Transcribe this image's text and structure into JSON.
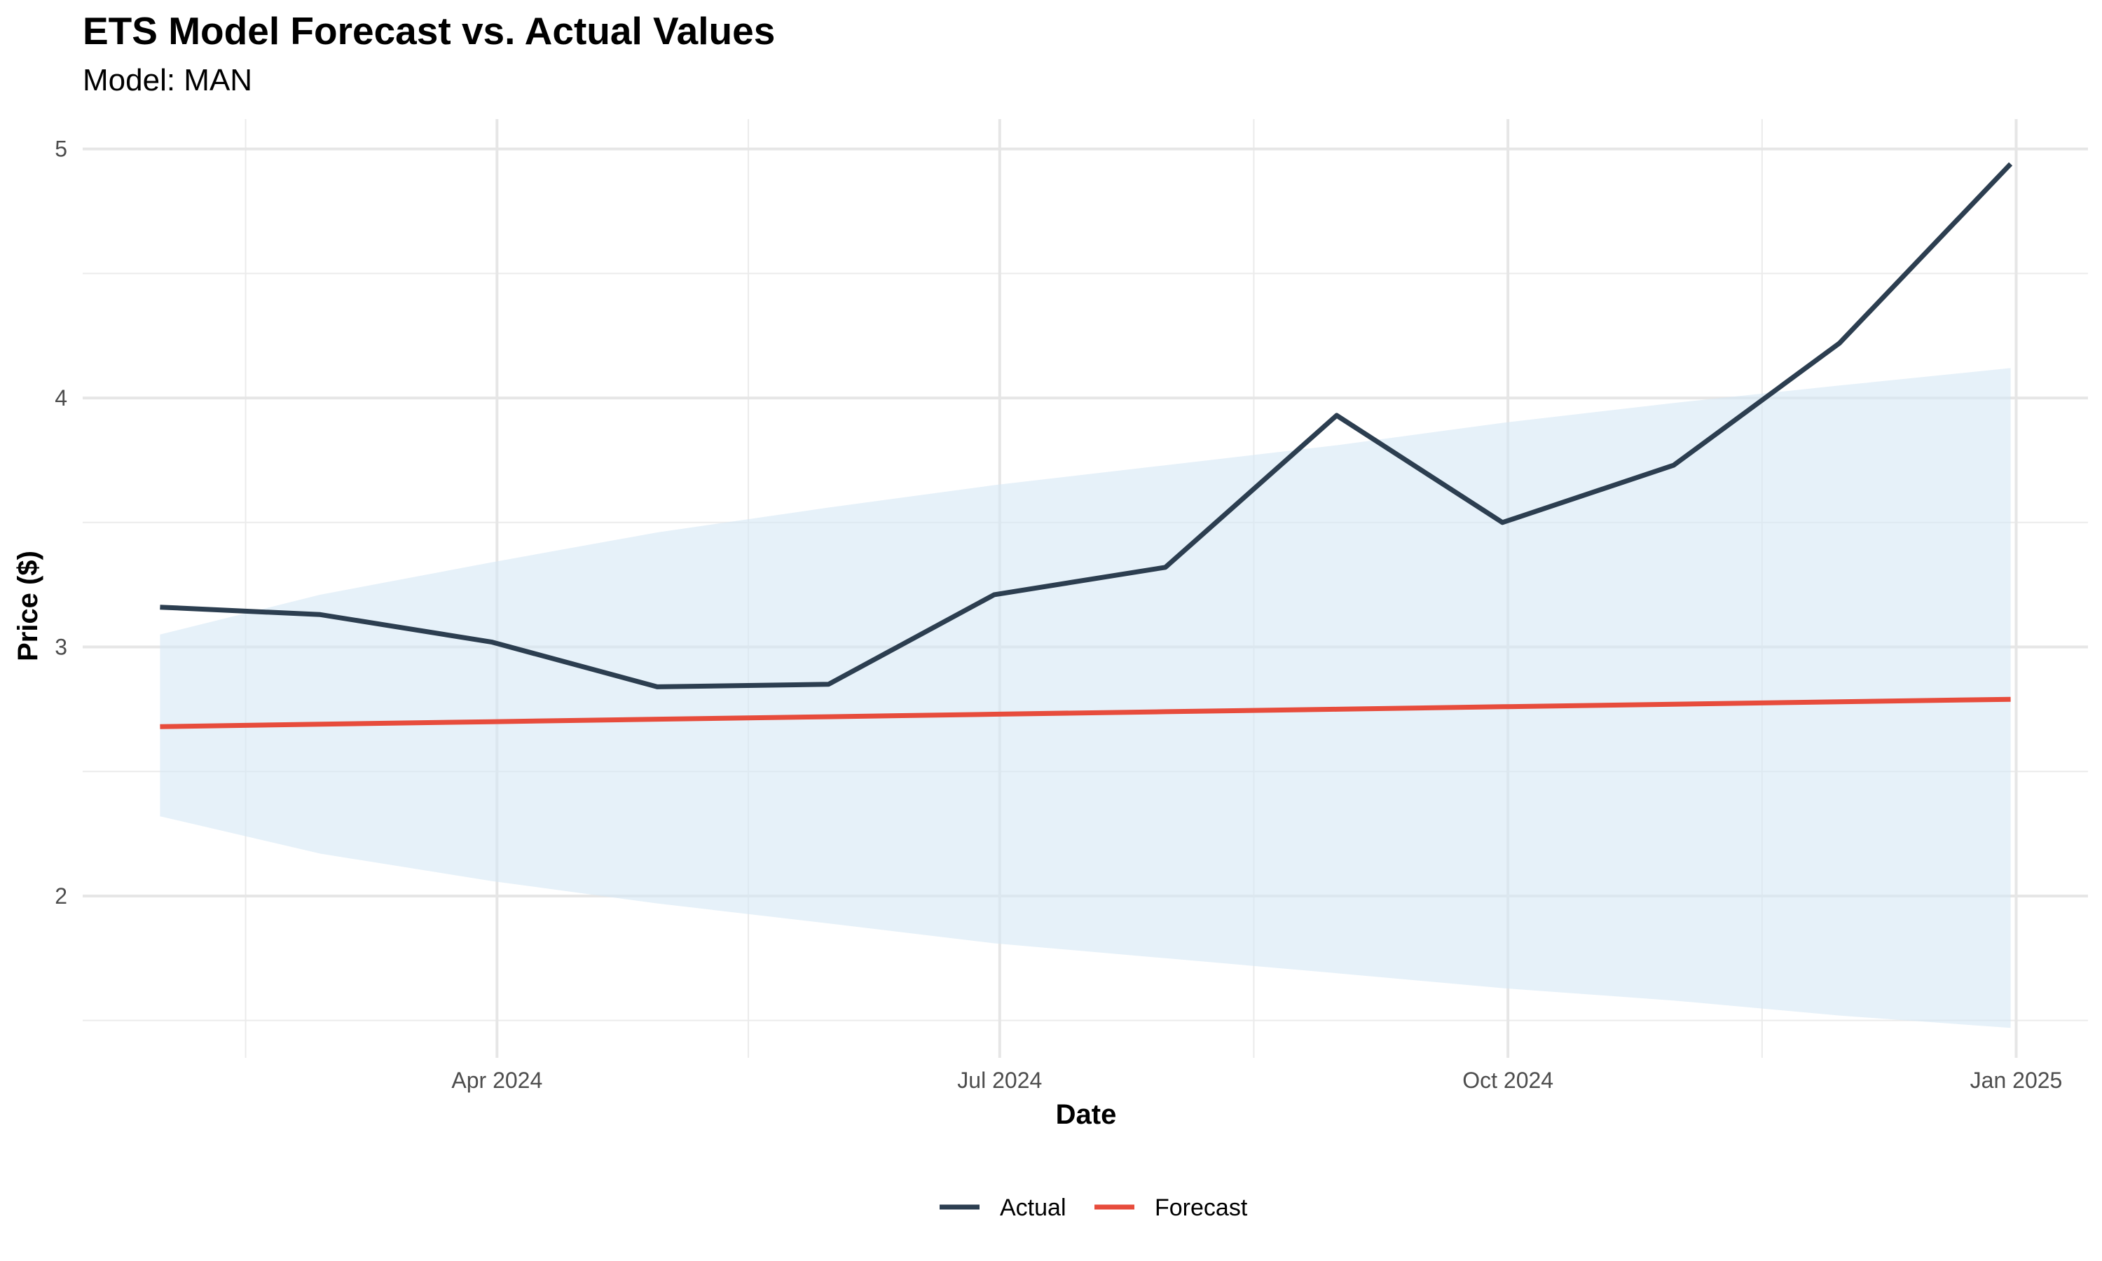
{
  "chart_data": {
    "type": "line",
    "title": "ETS Model Forecast vs. Actual Values",
    "subtitle": "Model: MAN",
    "xlabel": "Date",
    "ylabel": "Price ($)",
    "x": [
      "2024-01-31",
      "2024-02-29",
      "2024-03-31",
      "2024-04-30",
      "2024-05-31",
      "2024-06-30",
      "2024-07-31",
      "2024-08-31",
      "2024-09-30",
      "2024-10-31",
      "2024-11-30",
      "2024-12-31"
    ],
    "x_ticks": [
      {
        "date": "2024-04-01",
        "label": "Apr 2024"
      },
      {
        "date": "2024-07-01",
        "label": "Jul 2024"
      },
      {
        "date": "2024-10-01",
        "label": "Oct 2024"
      },
      {
        "date": "2025-01-01",
        "label": "Jan 2025"
      }
    ],
    "ylim": [
      1.35,
      5.12
    ],
    "y_ticks": [
      2,
      3,
      4,
      5
    ],
    "grid": true,
    "legend_position": "bottom",
    "series": [
      {
        "name": "Actual",
        "color": "#2c3e50",
        "values": [
          3.16,
          3.13,
          3.02,
          2.84,
          2.85,
          3.21,
          3.32,
          3.93,
          3.5,
          3.73,
          4.22,
          4.94
        ]
      },
      {
        "name": "Forecast",
        "color": "#e74c3c",
        "values": [
          2.68,
          2.69,
          2.7,
          2.71,
          2.72,
          2.73,
          2.74,
          2.75,
          2.76,
          2.77,
          2.78,
          2.79
        ]
      }
    ],
    "band": {
      "color": "#d6e8f5",
      "upper": [
        3.05,
        3.21,
        3.34,
        3.46,
        3.56,
        3.65,
        3.73,
        3.81,
        3.9,
        3.98,
        4.05,
        4.12
      ],
      "lower": [
        2.32,
        2.17,
        2.06,
        1.97,
        1.89,
        1.81,
        1.75,
        1.69,
        1.63,
        1.58,
        1.52,
        1.47
      ]
    }
  }
}
